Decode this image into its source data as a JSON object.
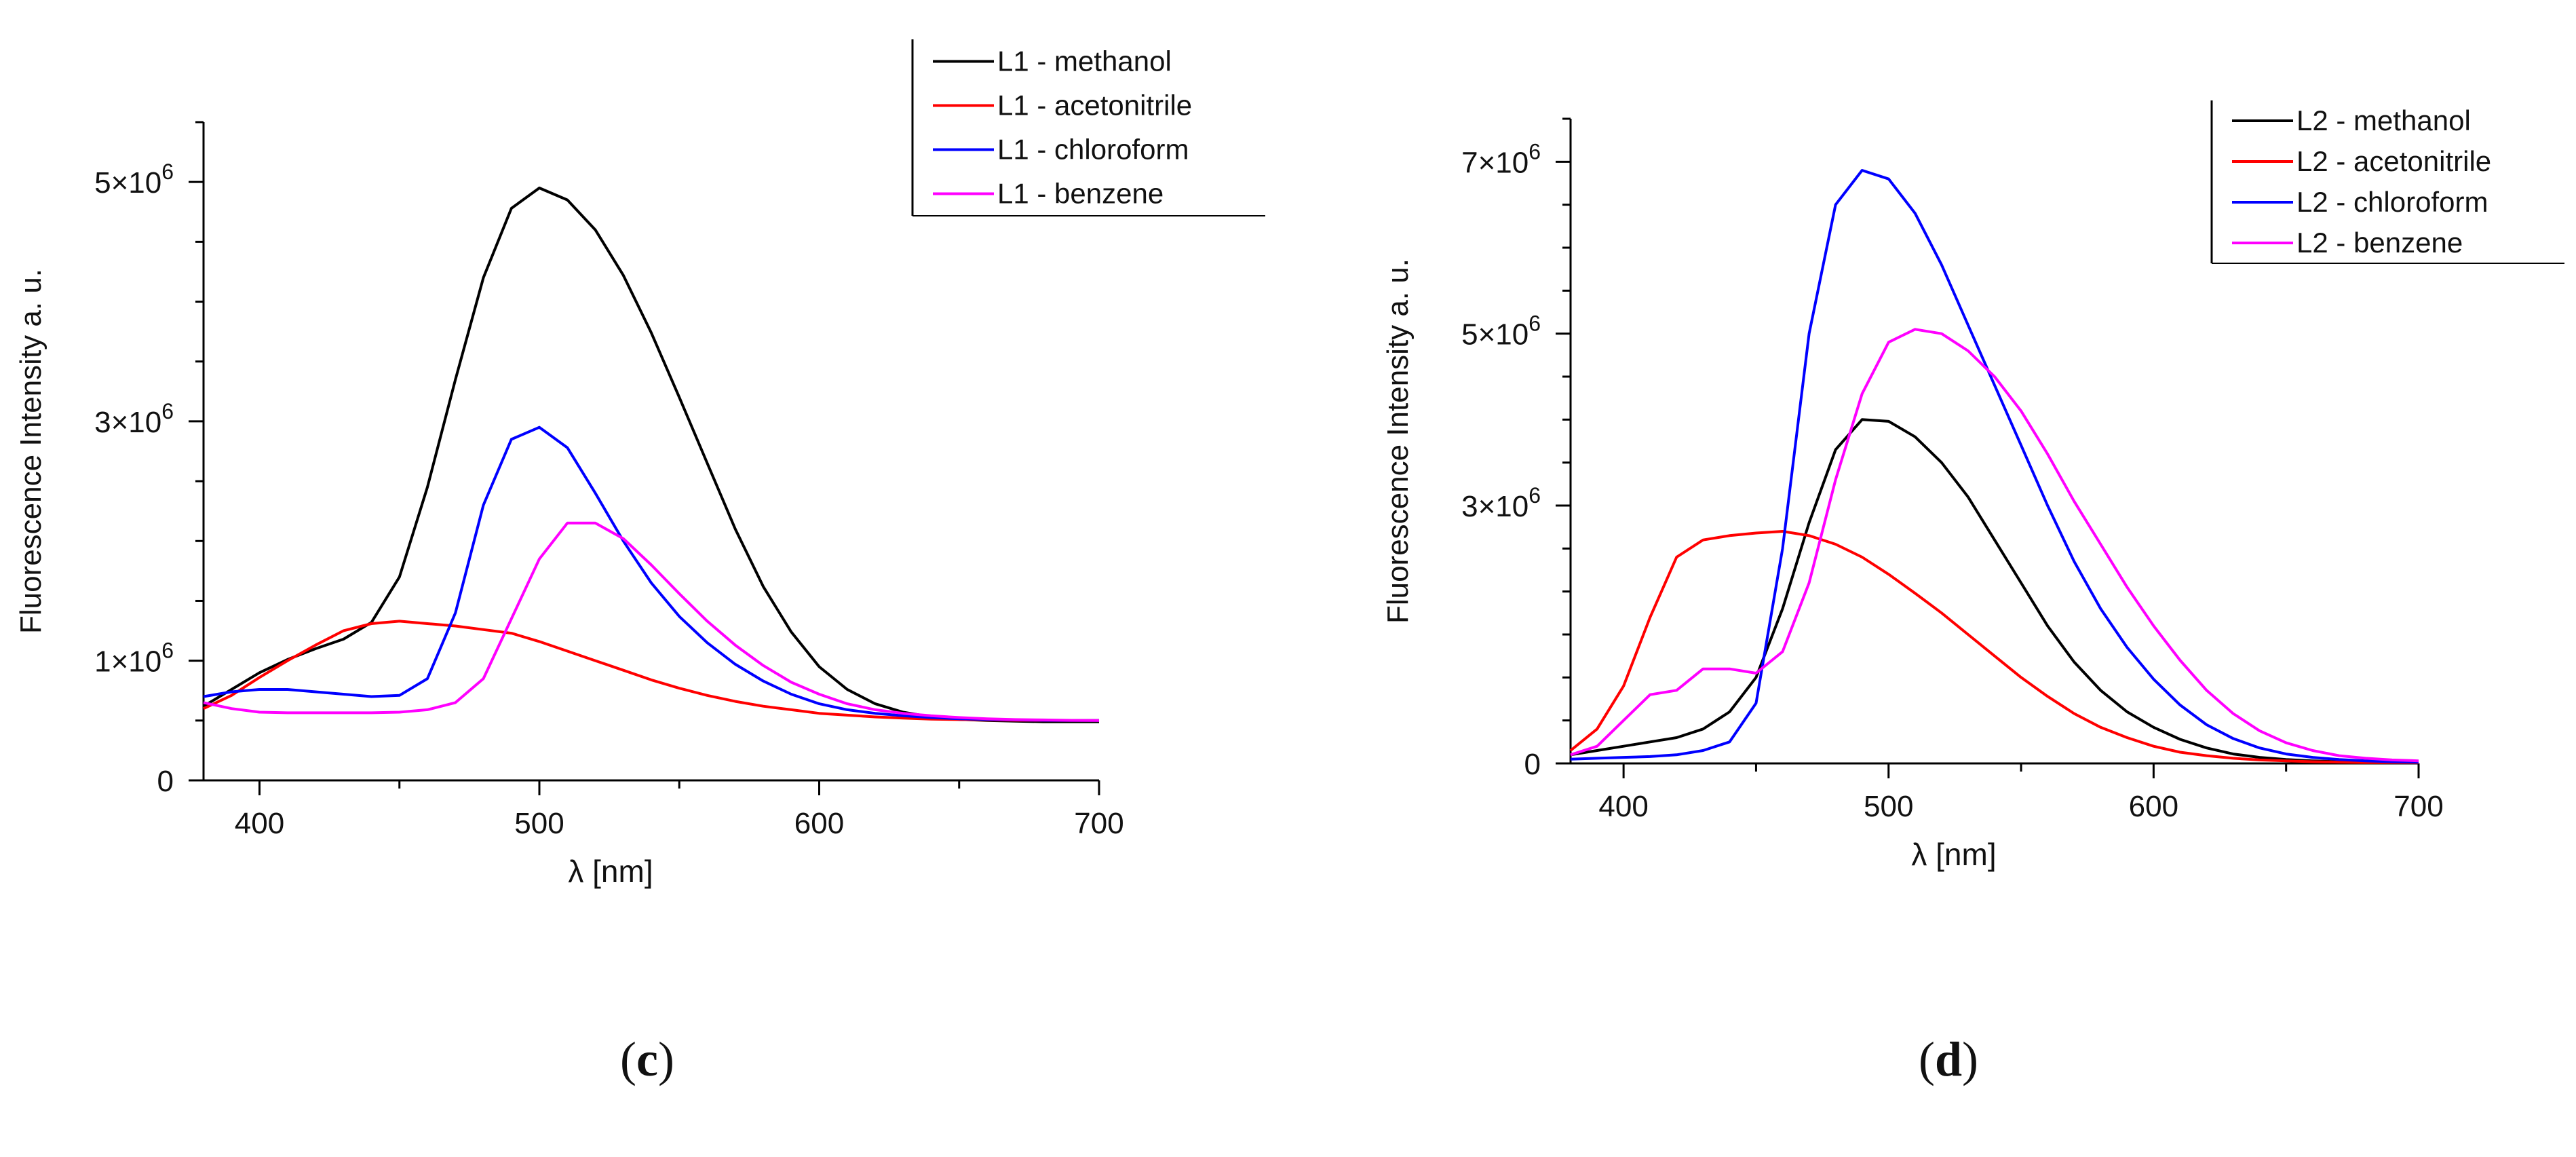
{
  "chart_data": [
    {
      "type": "line",
      "panel_label": "c",
      "xlabel": "λ [nm]",
      "ylabel": "Fluorescence Intensity a. u.",
      "xlim": [
        380,
        700
      ],
      "ylim": [
        0,
        5500000
      ],
      "xticks": [
        400,
        500,
        600,
        700
      ],
      "yticks": [
        {
          "value": 0,
          "label": "0",
          "exp": ""
        },
        {
          "value": 1000000,
          "label": "1×10",
          "exp": "6"
        },
        {
          "value": 3000000,
          "label": "3×10",
          "exp": "6"
        },
        {
          "value": 5000000,
          "label": "5×10",
          "exp": "6"
        }
      ],
      "legend_position": "top-right",
      "series": [
        {
          "name": "L1 - methanol",
          "color": "#000000",
          "x": [
            380,
            390,
            400,
            410,
            420,
            430,
            440,
            450,
            460,
            470,
            480,
            490,
            500,
            510,
            520,
            530,
            540,
            550,
            560,
            570,
            580,
            590,
            600,
            610,
            620,
            630,
            640,
            650,
            660,
            670,
            680,
            690,
            700
          ],
          "y": [
            620000,
            760000,
            900000,
            1010000,
            1100000,
            1180000,
            1320000,
            1700000,
            2450000,
            3350000,
            4200000,
            4780000,
            4950000,
            4850000,
            4600000,
            4220000,
            3740000,
            3200000,
            2650000,
            2100000,
            1620000,
            1240000,
            950000,
            760000,
            640000,
            570000,
            530000,
            510000,
            500000,
            495000,
            490000,
            490000,
            490000
          ]
        },
        {
          "name": "L1 - acetonitrile",
          "color": "#ff0000",
          "x": [
            380,
            390,
            400,
            410,
            420,
            430,
            440,
            450,
            460,
            470,
            480,
            490,
            500,
            510,
            520,
            530,
            540,
            550,
            560,
            570,
            580,
            590,
            600,
            610,
            620,
            630,
            640,
            650,
            660,
            670,
            680,
            690,
            700
          ],
          "y": [
            600000,
            710000,
            860000,
            1000000,
            1130000,
            1250000,
            1310000,
            1330000,
            1310000,
            1290000,
            1260000,
            1230000,
            1160000,
            1080000,
            1000000,
            920000,
            840000,
            770000,
            710000,
            660000,
            620000,
            590000,
            560000,
            545000,
            530000,
            520000,
            512000,
            508000,
            505000,
            502000,
            500000,
            500000,
            500000
          ]
        },
        {
          "name": "L1 - chloroform",
          "color": "#0000ff",
          "x": [
            380,
            390,
            400,
            410,
            420,
            430,
            440,
            450,
            460,
            470,
            480,
            490,
            500,
            510,
            520,
            530,
            540,
            550,
            560,
            570,
            580,
            590,
            600,
            610,
            620,
            630,
            640,
            650,
            660,
            670,
            680,
            690,
            700
          ],
          "y": [
            700000,
            740000,
            760000,
            760000,
            740000,
            720000,
            700000,
            710000,
            850000,
            1400000,
            2300000,
            2850000,
            2950000,
            2780000,
            2400000,
            2000000,
            1650000,
            1370000,
            1150000,
            970000,
            830000,
            720000,
            640000,
            590000,
            560000,
            540000,
            525000,
            515000,
            510000,
            505000,
            502000,
            500000,
            500000
          ]
        },
        {
          "name": "L1 - benzene",
          "color": "#ff00ff",
          "x": [
            380,
            390,
            400,
            410,
            420,
            430,
            440,
            450,
            460,
            470,
            480,
            490,
            500,
            510,
            520,
            530,
            540,
            550,
            560,
            570,
            580,
            590,
            600,
            610,
            620,
            630,
            640,
            650,
            660,
            670,
            680,
            690,
            700
          ],
          "y": [
            650000,
            600000,
            570000,
            565000,
            565000,
            565000,
            565000,
            570000,
            590000,
            650000,
            850000,
            1350000,
            1850000,
            2150000,
            2150000,
            2020000,
            1800000,
            1560000,
            1330000,
            1130000,
            960000,
            820000,
            720000,
            640000,
            590000,
            560000,
            540000,
            525000,
            515000,
            508000,
            505000,
            502000,
            500000
          ]
        }
      ]
    },
    {
      "type": "line",
      "panel_label": "d",
      "xlabel": "λ [nm]",
      "ylabel": "Fluorescence Intensity a. u.",
      "xlim": [
        380,
        700
      ],
      "ylim": [
        0,
        7500000
      ],
      "xticks": [
        400,
        500,
        600,
        700
      ],
      "yticks": [
        {
          "value": 0,
          "label": "0",
          "exp": ""
        },
        {
          "value": 3000000,
          "label": "3×10",
          "exp": "6"
        },
        {
          "value": 5000000,
          "label": "5×10",
          "exp": "6"
        },
        {
          "value": 7000000,
          "label": "7×10",
          "exp": "6"
        }
      ],
      "legend_position": "top-right",
      "series": [
        {
          "name": "L2 - methanol",
          "color": "#000000",
          "x": [
            380,
            390,
            400,
            410,
            420,
            430,
            440,
            450,
            460,
            470,
            480,
            490,
            500,
            510,
            520,
            530,
            540,
            550,
            560,
            570,
            580,
            590,
            600,
            610,
            620,
            630,
            640,
            650,
            660,
            670,
            680,
            690,
            700
          ],
          "y": [
            100000,
            150000,
            200000,
            250000,
            300000,
            400000,
            600000,
            1000000,
            1800000,
            2800000,
            3650000,
            4000000,
            3980000,
            3800000,
            3500000,
            3100000,
            2600000,
            2100000,
            1600000,
            1180000,
            850000,
            600000,
            420000,
            280000,
            180000,
            110000,
            70000,
            45000,
            30000,
            20000,
            15000,
            10000,
            10000
          ]
        },
        {
          "name": "L2 - acetonitrile",
          "color": "#ff0000",
          "x": [
            380,
            390,
            400,
            410,
            420,
            430,
            440,
            450,
            460,
            470,
            480,
            490,
            500,
            510,
            520,
            530,
            540,
            550,
            560,
            570,
            580,
            590,
            600,
            610,
            620,
            630,
            640,
            650,
            660,
            670,
            680,
            690,
            700
          ],
          "y": [
            150000,
            400000,
            900000,
            1700000,
            2400000,
            2600000,
            2650000,
            2680000,
            2700000,
            2650000,
            2550000,
            2400000,
            2200000,
            1980000,
            1750000,
            1500000,
            1250000,
            1000000,
            780000,
            580000,
            420000,
            300000,
            200000,
            130000,
            90000,
            60000,
            40000,
            30000,
            20000,
            15000,
            10000,
            10000,
            10000
          ]
        },
        {
          "name": "L2 - chloroform",
          "color": "#0000ff",
          "x": [
            380,
            390,
            400,
            410,
            420,
            430,
            440,
            450,
            460,
            470,
            480,
            490,
            500,
            510,
            520,
            530,
            540,
            550,
            560,
            570,
            580,
            590,
            600,
            610,
            620,
            630,
            640,
            650,
            660,
            670,
            680,
            690,
            700
          ],
          "y": [
            50000,
            60000,
            70000,
            80000,
            100000,
            150000,
            250000,
            700000,
            2500000,
            5000000,
            6500000,
            6900000,
            6800000,
            6400000,
            5800000,
            5100000,
            4400000,
            3700000,
            3000000,
            2350000,
            1800000,
            1350000,
            980000,
            680000,
            450000,
            290000,
            180000,
            110000,
            70000,
            45000,
            30000,
            20000,
            15000
          ]
        },
        {
          "name": "L2 - benzene",
          "color": "#ff00ff",
          "x": [
            380,
            390,
            400,
            410,
            420,
            430,
            440,
            450,
            460,
            470,
            480,
            490,
            500,
            510,
            520,
            530,
            540,
            550,
            560,
            570,
            580,
            590,
            600,
            610,
            620,
            630,
            640,
            650,
            660,
            670,
            680,
            690,
            700
          ],
          "y": [
            100000,
            200000,
            500000,
            800000,
            850000,
            1100000,
            1100000,
            1050000,
            1300000,
            2100000,
            3300000,
            4300000,
            4900000,
            5050000,
            5000000,
            4800000,
            4500000,
            4100000,
            3600000,
            3050000,
            2550000,
            2050000,
            1600000,
            1200000,
            850000,
            580000,
            380000,
            240000,
            150000,
            90000,
            60000,
            40000,
            30000
          ]
        }
      ]
    }
  ]
}
